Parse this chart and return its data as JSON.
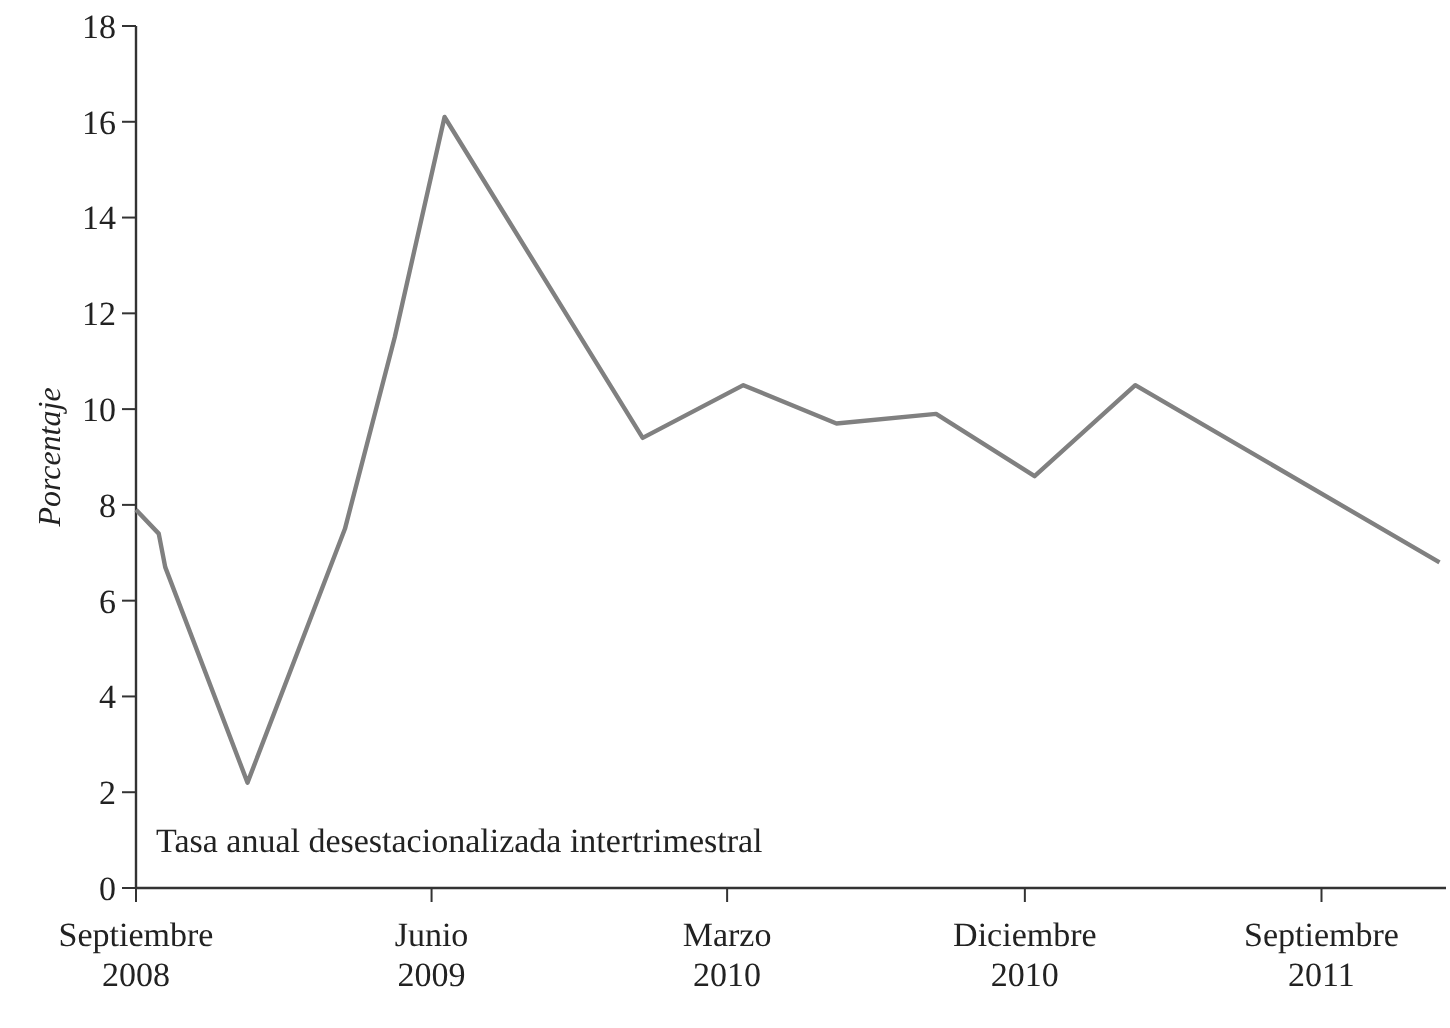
{
  "chart_data": {
    "type": "line",
    "ylabel": "Porcentaje",
    "annotations": [
      "Tasa anual desestacionalizada intertrimestral"
    ],
    "x": [
      "2008-09-01",
      "2008-09-22",
      "2008-09-28",
      "2008-12-13",
      "2009-03-13",
      "2009-04-28",
      "2009-06-13",
      "2009-12-13",
      "2010-03-16",
      "2010-06-10",
      "2010-09-10",
      "2010-12-10",
      "2011-03-13",
      "2011-12-19"
    ],
    "series": [
      {
        "color": "#808080",
        "values": [
          7.9,
          7.4,
          6.7,
          2.2,
          7.5,
          11.5,
          16.1,
          9.4,
          10.5,
          9.7,
          9.9,
          8.6,
          10.5,
          6.8
        ]
      }
    ],
    "xlim": [
      "2008-09-01",
      "2011-12-25"
    ],
    "xticks": [
      {
        "value": "2008-09-01",
        "label": "Septiembre 2008"
      },
      {
        "value": "2009-06-01",
        "label": "Junio 2009"
      },
      {
        "value": "2010-03-01",
        "label": "Marzo 2010"
      },
      {
        "value": "2010-12-01",
        "label": "Diciembre 2010"
      },
      {
        "value": "2011-09-01",
        "label": "Septiembre 2011"
      }
    ],
    "ylim": [
      0,
      18
    ],
    "yticks": [
      0,
      2,
      4,
      6,
      8,
      10,
      12,
      14,
      16,
      18
    ],
    "grid": false,
    "marker": "none",
    "line_style": "solid"
  }
}
